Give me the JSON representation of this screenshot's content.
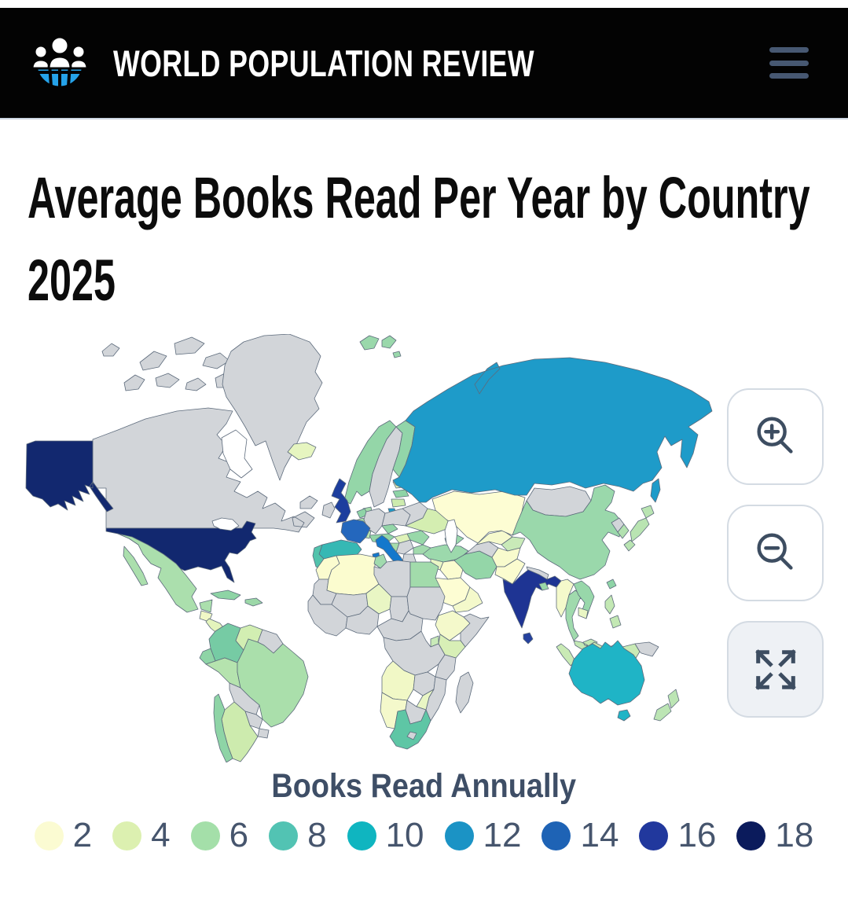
{
  "header": {
    "brand": "WORLD POPULATION REVIEW"
  },
  "page": {
    "title_line1": "Average Books Read Per Year by Country",
    "title_line2": "2025"
  },
  "map": {
    "border_color": "#5d6b7c",
    "no_data_color": "#d2d5d9",
    "ocean_color": "#ffffff",
    "controls": [
      {
        "icon": "zoom-in-icon"
      },
      {
        "icon": "zoom-out-icon"
      },
      {
        "icon": "fullscreen-icon"
      }
    ],
    "country_colors": {
      "alaska": "#12286f",
      "canada": "#d2d5d9",
      "hudson-bay": "#ffffff",
      "greenland": "#d2d5d9",
      "usa": "#12286f",
      "great-lakes": "#ffffff",
      "mexico": "#abdfad",
      "guatemala": "#f1f8c6",
      "nicaragua": "#e4f4bc",
      "panama": "#9cd8a8",
      "cuba": "#8ed4a5",
      "hispaniola": "#9cd8a8",
      "colombia": "#76cba4",
      "venezuela": "#d2eeb2",
      "guyanas": "#d2d5d9",
      "ecuador": "#8ed4a6",
      "peru": "#b5e3ae",
      "brazil": "#aadfab",
      "bolivia": "#d2d5d9",
      "paraguay": "#d2d5d9",
      "uruguay": "#d2d5d9",
      "argentina": "#cdebae",
      "chile": "#8ed4a6",
      "iceland": "#e6f5c0",
      "norway": "#94d6a8",
      "sweden": "#d2d5d9",
      "finland": "#92d5a9",
      "denmark": "#a5dcab",
      "estonia": "#dff2b8",
      "latvia": "#8ed4a6",
      "lithuania": "#cdebae",
      "kaliningrad": "#1e9bc9",
      "uk": "#1d3e9e",
      "ireland": "#d2d5d9",
      "netherlands": "#8ed4a6",
      "belgium": "#a8dda9",
      "germany": "#d2d5d9",
      "poland": "#d2d5d9",
      "belarus": "#d2d5d9",
      "ukraine": "#d4eeb1",
      "czech": "#93d6a7",
      "austria": "#93d6a7",
      "switzerland": "#b7e3b0",
      "hungary": "#dff2b8",
      "romania": "#98d8a9",
      "croatia": "#a6dcaa",
      "serbia": "#d2d5d9",
      "bulgaria": "#a2daad",
      "greece": "#d2d5d9",
      "italy": "#1478cc",
      "france": "#2467bd",
      "spain": "#36b8b4",
      "portugal": "#52c3ac",
      "turkey": "#9cd9ac",
      "caucasus": "#9ad8ab",
      "syria": "#e9f6c4",
      "levant": "#cdebae",
      "iraq": "#fbfccf",
      "saudi-arabia": "#fdfdd3",
      "yemen-oman": "#f4f9cb",
      "iran": "#94d6a8",
      "turkmenistan": "#d2d5d9",
      "uzbekistan": "#f6facd",
      "kyrgyzstan": "#c9eab8",
      "afghanistan": "#f8fbcd",
      "pakistan": "#fbfccf",
      "kazakhstan": "#fdfdd3",
      "russia": "#1e9bc9",
      "svalbard": "#9ad8ab",
      "mongolia": "#d2d5d9",
      "china": "#9ad8ab",
      "nepal": "#d2d5d9",
      "india": "#1e3493",
      "bangladesh": "#9ad8a9",
      "sri-lanka": "#25419e",
      "myanmar": "#f4f9cb",
      "thailand": "#a0daad",
      "vietnam": "#98d7aa",
      "cambodia": "#e9f6c4",
      "malaysia": "#c3e8b4",
      "indonesia": "#c9eab5",
      "papua-new-guinea": "#d2d5d9",
      "philippines": "#c3e8b4",
      "taiwan": "#8ed4a6",
      "north-korea": "#d2d5d9",
      "south-korea": "#b2e1b0",
      "japan": "#b9e4b2",
      "australia": "#1fb4c6",
      "new-zealand": "#bce5b4",
      "morocco": "#fbfccf",
      "mauritania": "#d2d5d9",
      "algeria": "#fbfccf",
      "tunisia": "#a0daad",
      "libya": "#d2d5d9",
      "egypt": "#a2dbab",
      "mali": "#d2d5d9",
      "niger": "#e9f6c4",
      "chad": "#d2d5d9",
      "sudan": "#d2d5d9",
      "west-africa": "#d2d5d9",
      "nigeria": "#d2d5d9",
      "cameroon": "#d2d5d9",
      "ethiopia": "#f4f9cb",
      "somalia": "#d2d5d9",
      "kenya": "#d8efb6",
      "uganda": "#c9eab8",
      "drc": "#d2d5d9",
      "tanzania": "#d2d5d9",
      "angola": "#f1f8c6",
      "zambia": "#d2d5d9",
      "mozambique": "#d2d5d9",
      "zimbabwe": "#e9f6c4",
      "namibia": "#f4f9cb",
      "botswana": "#d2d5d9",
      "south-africa": "#5ec6a5",
      "lesotho": "#d2d5d9",
      "madagascar": "#d2d5d9",
      "caspian-sea": "#ffffff"
    }
  },
  "chart_data": {
    "type": "heatmap",
    "subtype": "choropleth-world-map",
    "title": "Books Read Annually",
    "legend_position": "bottom",
    "scale_values": [
      2,
      4,
      6,
      8,
      10,
      12,
      14,
      16,
      18
    ],
    "scale_colors": [
      "#fbfbd2",
      "#dcf0b0",
      "#a4dfa9",
      "#52c3b3",
      "#0fb5c0",
      "#1b93c5",
      "#1e63b5",
      "#21389d",
      "#0b1b5c"
    ],
    "no_data_color": "#d2d5d9"
  },
  "legend": {
    "title": "Books Read Annually",
    "items": [
      {
        "value": "2",
        "color": "#fbfbd2"
      },
      {
        "value": "4",
        "color": "#dcf0b0"
      },
      {
        "value": "6",
        "color": "#a4dfa9"
      },
      {
        "value": "8",
        "color": "#52c3b3"
      },
      {
        "value": "10",
        "color": "#0fb5c0"
      },
      {
        "value": "12",
        "color": "#1b93c5"
      },
      {
        "value": "14",
        "color": "#1e63b5"
      },
      {
        "value": "16",
        "color": "#21389d"
      },
      {
        "value": "18",
        "color": "#0b1b5c"
      }
    ]
  }
}
